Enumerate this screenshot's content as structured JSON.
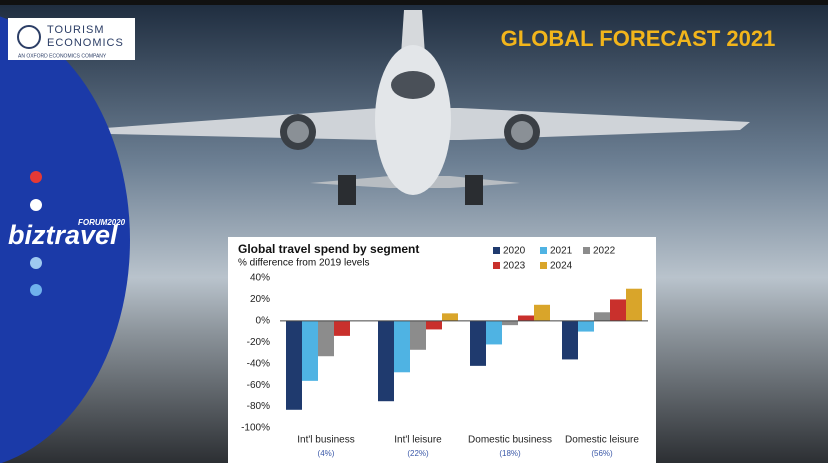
{
  "logo": {
    "name_line1": "TOURISM",
    "name_line2": "ECONOMICS",
    "tagline": "AN OXFORD ECONOMICS COMPANY"
  },
  "brand": {
    "name": "biztravel",
    "badge": "FORUM2020"
  },
  "headline": "GLOBAL FORECAST 2021",
  "chart_data": {
    "type": "bar",
    "title": "Global travel spend by segment",
    "subtitle": "% difference from 2019 levels",
    "categories": [
      "Int'l business",
      "Int'l leisure",
      "Domestic business",
      "Domestic leisure"
    ],
    "category_notes": [
      "(4%)",
      "(22%)",
      "(18%)",
      "(56%)"
    ],
    "series": [
      {
        "name": "2020",
        "color": "#1f3a6e",
        "values": [
          -83,
          -75,
          -42,
          -36
        ]
      },
      {
        "name": "2021",
        "color": "#4fb3e3",
        "values": [
          -56,
          -48,
          -22,
          -10
        ]
      },
      {
        "name": "2022",
        "color": "#8c8c8c",
        "values": [
          -33,
          -27,
          -4,
          8
        ]
      },
      {
        "name": "2023",
        "color": "#c9302c",
        "values": [
          -14,
          -8,
          5,
          20
        ]
      },
      {
        "name": "2024",
        "color": "#d9a52a",
        "values": [
          null,
          7,
          15,
          30
        ]
      }
    ],
    "ylim": [
      -100,
      40
    ],
    "yticks": [
      {
        "value": -100,
        "label": "-100%"
      },
      {
        "value": -80,
        "label": "-80%"
      },
      {
        "value": -60,
        "label": "-60%"
      },
      {
        "value": -40,
        "label": "-40%"
      },
      {
        "value": -20,
        "label": "-20%"
      },
      {
        "value": 0,
        "label": "0%"
      },
      {
        "value": 20,
        "label": "20%"
      },
      {
        "value": 40,
        "label": "40%"
      }
    ],
    "grid": false
  }
}
